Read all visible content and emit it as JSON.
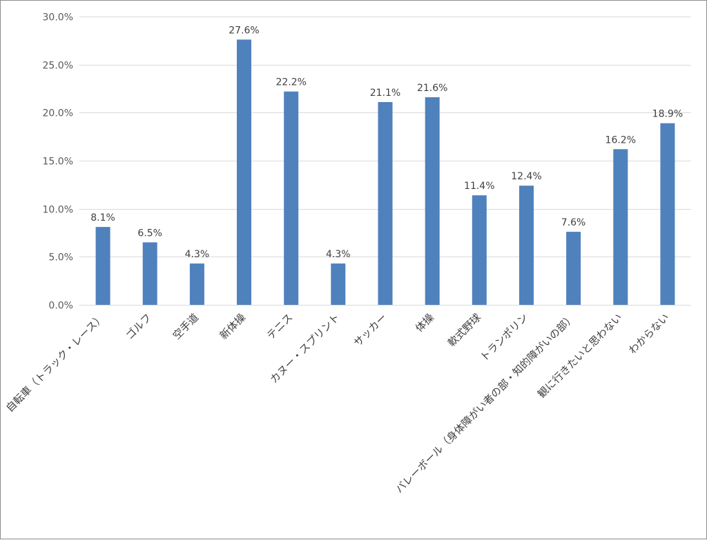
{
  "chart_data": {
    "type": "bar",
    "categories": [
      "自転車（トラック・レース）",
      "ゴルフ",
      "空手道",
      "新体操",
      "テニス",
      "カヌー・スプリント",
      "サッカー",
      "体操",
      "軟式野球",
      "トランポリン",
      "バレーボール（身体障がい者の部・知的障がいの部）",
      "観に行きたいと思わない",
      "わからない"
    ],
    "values": [
      8.1,
      6.5,
      4.3,
      27.6,
      22.2,
      4.3,
      21.1,
      21.6,
      11.4,
      12.4,
      7.6,
      16.2,
      18.9
    ],
    "data_labels": [
      "8.1%",
      "6.5%",
      "4.3%",
      "27.6%",
      "22.2%",
      "4.3%",
      "21.1%",
      "21.6%",
      "11.4%",
      "12.4%",
      "7.6%",
      "16.2%",
      "18.9%"
    ],
    "y_ticks": [
      {
        "value": 0,
        "label": "0.0%"
      },
      {
        "value": 5,
        "label": "5.0%"
      },
      {
        "value": 10,
        "label": "10.0%"
      },
      {
        "value": 15,
        "label": "15.0%"
      },
      {
        "value": 20,
        "label": "20.0%"
      },
      {
        "value": 25,
        "label": "25.0%"
      },
      {
        "value": 30,
        "label": "30.0%"
      }
    ],
    "ylim": [
      0,
      30
    ],
    "grid": true,
    "bar_color": "#4f81bd"
  }
}
